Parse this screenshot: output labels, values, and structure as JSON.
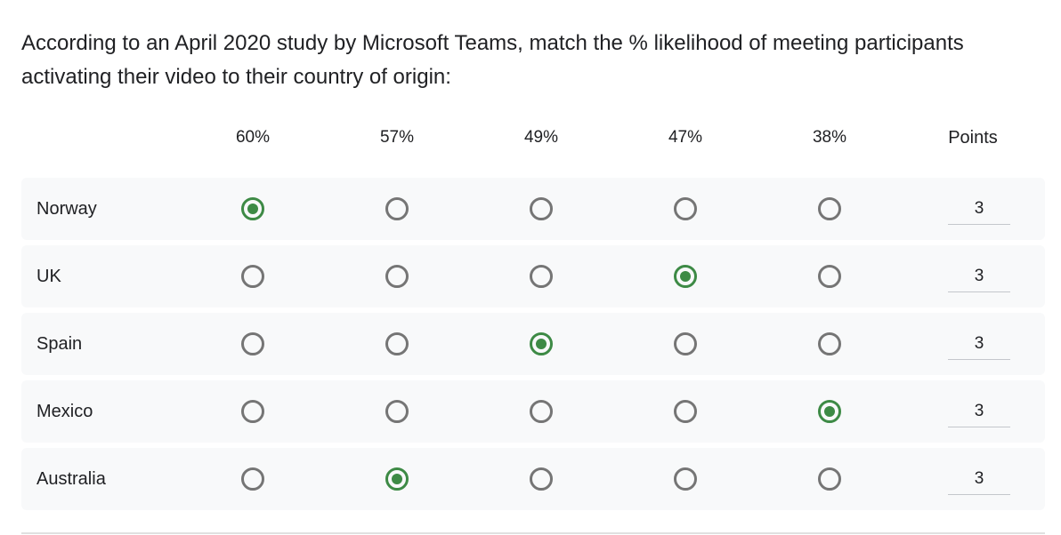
{
  "question": {
    "text": "According to an April 2020 study by Microsoft Teams, match the % likelihood of meeting participants activating their video to their country of origin:"
  },
  "grid": {
    "columns": [
      "60%",
      "57%",
      "49%",
      "47%",
      "38%"
    ],
    "points_header": "Points",
    "rows": [
      {
        "label": "Norway",
        "selected_index": 0,
        "points": "3"
      },
      {
        "label": "UK",
        "selected_index": 3,
        "points": "3"
      },
      {
        "label": "Spain",
        "selected_index": 2,
        "points": "3"
      },
      {
        "label": "Mexico",
        "selected_index": 4,
        "points": "3"
      },
      {
        "label": "Australia",
        "selected_index": 1,
        "points": "3"
      }
    ]
  },
  "colors": {
    "selected": "#3d8a45",
    "unselected": "#757575",
    "row_background": "#f8f9fa"
  }
}
